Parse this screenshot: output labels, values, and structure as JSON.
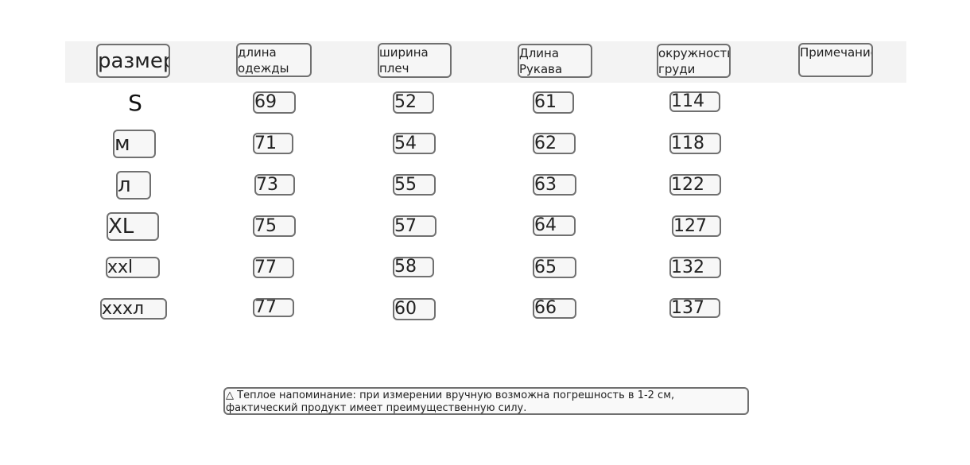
{
  "table": {
    "headers": [
      "размер",
      "длина одежды",
      "ширина плеч",
      "Длина Рукава",
      "окружность груди",
      "Примечание"
    ],
    "rows": [
      [
        "S",
        "69",
        "52",
        "61",
        "114"
      ],
      [
        "м",
        "71",
        "54",
        "62",
        "118"
      ],
      [
        "л",
        "73",
        "55",
        "63",
        "122"
      ],
      [
        "XL",
        "75",
        "57",
        "64",
        "127"
      ],
      [
        "xxl",
        "77",
        "58",
        "65",
        "132"
      ],
      [
        "xxxл",
        "77",
        "60",
        "66",
        "137"
      ]
    ]
  },
  "note": {
    "icon": "warning-triangle-icon",
    "text": "Теплое напоминание: при измерении вручную возможна погрешность в 1-2 см, фактический продукт имеет преимущественную силу."
  }
}
